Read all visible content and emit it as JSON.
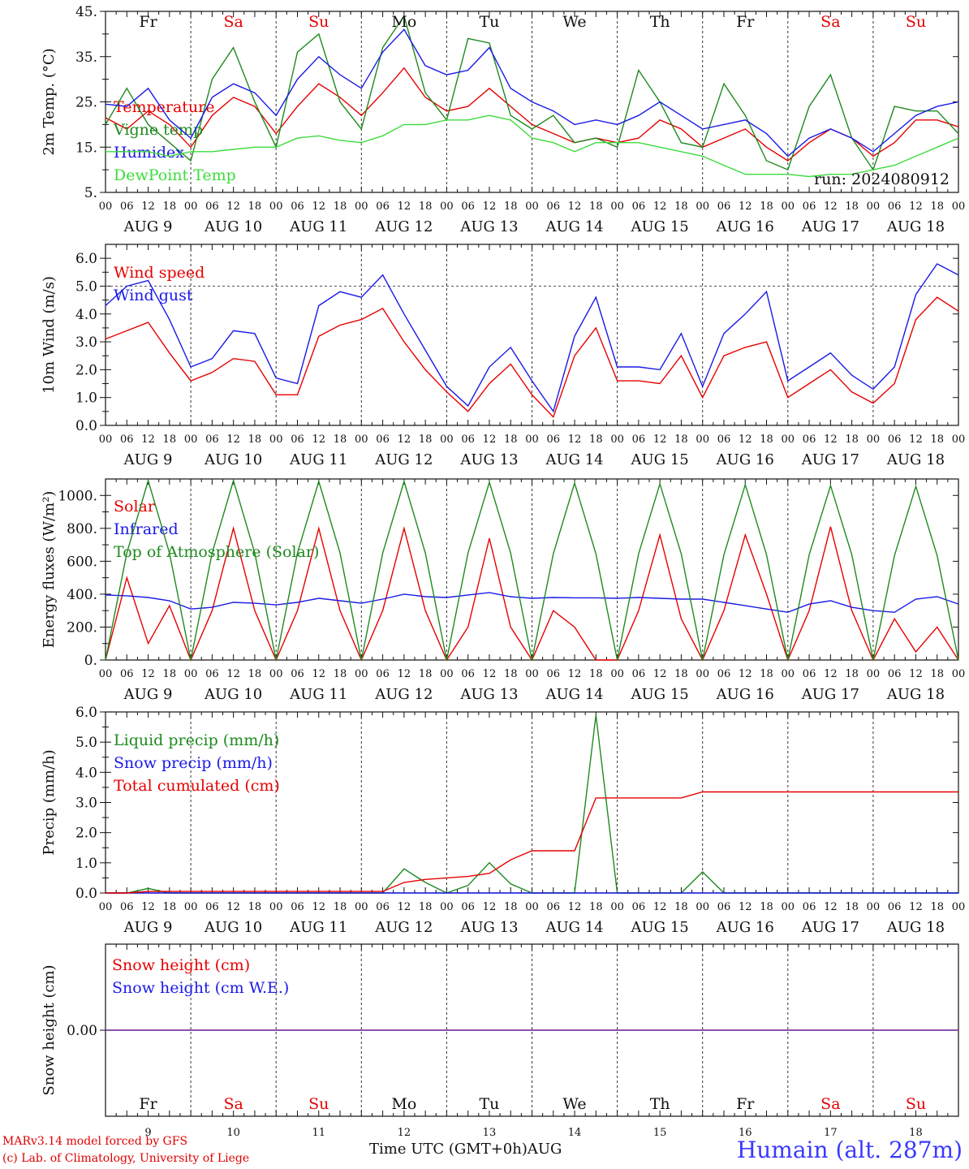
{
  "colors": {
    "red": "#e60000",
    "green": "#1f8a1f",
    "blue": "#1a1ae6",
    "lightgreen": "#3ddc3d",
    "purple": "#7a3aa0"
  },
  "days": [
    {
      "abbr": "Fr",
      "weekend": false,
      "date": "AUG  9",
      "num": "9"
    },
    {
      "abbr": "Sa",
      "weekend": true,
      "date": "AUG 10",
      "num": "10"
    },
    {
      "abbr": "Su",
      "weekend": true,
      "date": "AUG 11",
      "num": "11"
    },
    {
      "abbr": "Mo",
      "weekend": false,
      "date": "AUG 12",
      "num": "12"
    },
    {
      "abbr": "Tu",
      "weekend": false,
      "date": "AUG 13",
      "num": "13"
    },
    {
      "abbr": "We",
      "weekend": false,
      "date": "AUG 14",
      "num": "14"
    },
    {
      "abbr": "Th",
      "weekend": false,
      "date": "AUG 15",
      "num": "15"
    },
    {
      "abbr": "Fr",
      "weekend": false,
      "date": "AUG 16",
      "num": "16"
    },
    {
      "abbr": "Sa",
      "weekend": true,
      "date": "AUG 17",
      "num": "17"
    },
    {
      "abbr": "Su",
      "weekend": true,
      "date": "AUG 18",
      "num": "18"
    }
  ],
  "hour_ticks": [
    "00",
    "06",
    "12",
    "18"
  ],
  "final_tick": "00",
  "footer": {
    "model": "MARv3.14 model forced by GFS",
    "lab": "(c) Lab. of Climatology, University of Liege",
    "time_label": "Time UTC (GMT+0h)",
    "month": "AUG",
    "station": "Humain (alt. 287m)"
  },
  "chart_data": [
    {
      "type": "line",
      "ylabel": "2m Temp. (°C)",
      "ylim": [
        5,
        45
      ],
      "yticks": [
        5,
        15,
        25,
        35,
        45
      ],
      "ytick_labels": [
        "5.",
        "15.",
        "25.",
        "35.",
        "45."
      ],
      "annotation": "run: 2024080912",
      "x_hours": [
        0,
        6,
        12,
        18,
        24,
        30,
        36,
        42,
        48,
        54,
        60,
        66,
        72,
        78,
        84,
        90,
        96,
        102,
        108,
        114,
        120,
        126,
        132,
        138,
        144,
        150,
        156,
        162,
        168,
        174,
        180,
        186,
        192,
        198,
        204,
        210,
        216,
        222,
        228,
        234,
        240
      ],
      "series": [
        {
          "name": "Temperature",
          "color": "red",
          "values": [
            21.5,
            19,
            23,
            20,
            15,
            22,
            26,
            24,
            18,
            24,
            29,
            26,
            22,
            27,
            32.5,
            26,
            23,
            24,
            28,
            24,
            20,
            18,
            16,
            17,
            16,
            17,
            21,
            19,
            15,
            17,
            19,
            15,
            12,
            16,
            19,
            17,
            13,
            16,
            21,
            21,
            19.5
          ]
        },
        {
          "name": "Vigne temp",
          "color": "green",
          "values": [
            20,
            28,
            20,
            16,
            12,
            30,
            37,
            25,
            15,
            36,
            40,
            25,
            19,
            37,
            44,
            27,
            21,
            39,
            38,
            22,
            19,
            22,
            16,
            17,
            15,
            32,
            25,
            16,
            15,
            29,
            22,
            12,
            10,
            24,
            31,
            17,
            10,
            24,
            23,
            23,
            18
          ]
        },
        {
          "name": "Humidex",
          "color": "blue",
          "values": [
            24.5,
            24,
            28,
            21,
            17,
            26,
            29,
            27,
            22,
            30,
            35,
            31,
            28,
            36,
            41,
            33,
            31,
            32,
            37,
            28,
            25,
            23,
            20,
            21,
            20,
            22,
            25,
            22,
            19,
            20,
            21,
            18,
            13,
            17,
            19,
            17,
            14,
            18,
            22,
            24,
            25
          ]
        },
        {
          "name": "DewPoint Temp",
          "color": "lightgreen",
          "values": [
            14,
            14,
            14,
            13,
            14,
            14,
            14.5,
            15,
            15,
            17,
            17.5,
            16.5,
            16,
            17.5,
            20,
            20,
            21,
            21,
            22,
            21,
            17,
            16,
            14,
            16,
            16,
            16,
            15,
            14,
            13,
            11,
            9,
            9,
            9,
            8.5,
            9,
            9,
            10,
            11,
            13,
            15,
            17
          ]
        }
      ]
    },
    {
      "type": "line",
      "ylabel": "10m Wind (m/s)",
      "ylim": [
        0,
        6.5
      ],
      "yticks": [
        0,
        1,
        2,
        3,
        4,
        5,
        6
      ],
      "ytick_labels": [
        "0.0",
        "1.0",
        "2.0",
        "3.0",
        "4.0",
        "5.0",
        "6.0"
      ],
      "ref_line": 5.0,
      "x_hours": [
        0,
        6,
        12,
        18,
        24,
        30,
        36,
        42,
        48,
        54,
        60,
        66,
        72,
        78,
        84,
        90,
        96,
        102,
        108,
        114,
        120,
        126,
        132,
        138,
        144,
        150,
        156,
        162,
        168,
        174,
        180,
        186,
        192,
        198,
        204,
        210,
        216,
        222,
        228,
        234,
        240
      ],
      "series": [
        {
          "name": "Wind speed",
          "color": "red",
          "values": [
            3.1,
            3.4,
            3.7,
            2.6,
            1.6,
            1.9,
            2.4,
            2.3,
            1.1,
            1.1,
            3.2,
            3.6,
            3.8,
            4.2,
            3.0,
            2.0,
            1.2,
            0.5,
            1.5,
            2.2,
            1.1,
            0.3,
            2.5,
            3.5,
            1.6,
            1.6,
            1.5,
            2.5,
            1.0,
            2.5,
            2.8,
            3.0,
            1.0,
            1.5,
            2.0,
            1.2,
            0.8,
            1.5,
            3.8,
            4.6,
            4.1
          ]
        },
        {
          "name": "Wind gust",
          "color": "blue",
          "values": [
            4.3,
            5.0,
            5.2,
            3.8,
            2.1,
            2.4,
            3.4,
            3.3,
            1.7,
            1.5,
            4.3,
            4.8,
            4.6,
            5.4,
            4.0,
            2.7,
            1.4,
            0.7,
            2.1,
            2.8,
            1.6,
            0.5,
            3.2,
            4.6,
            2.1,
            2.1,
            2.0,
            3.3,
            1.4,
            3.3,
            4.0,
            4.8,
            1.6,
            2.1,
            2.6,
            1.8,
            1.3,
            2.1,
            4.7,
            5.8,
            5.4
          ]
        }
      ]
    },
    {
      "type": "line",
      "ylabel": "Energy fluxes (W/m²)",
      "ylim": [
        0,
        1100
      ],
      "yticks": [
        0,
        200,
        400,
        600,
        800,
        1000
      ],
      "ytick_labels": [
        "0.",
        "200.",
        "400.",
        "600.",
        "800.",
        "1000."
      ],
      "x_hours": [
        0,
        6,
        12,
        18,
        24,
        30,
        36,
        42,
        48,
        54,
        60,
        66,
        72,
        78,
        84,
        90,
        96,
        102,
        108,
        114,
        120,
        126,
        132,
        138,
        144,
        150,
        156,
        162,
        168,
        174,
        180,
        186,
        192,
        198,
        204,
        210,
        216,
        222,
        228,
        234,
        240
      ],
      "series": [
        {
          "name": "Solar",
          "color": "red",
          "values": [
            0,
            500,
            100,
            330,
            0,
            300,
            800,
            300,
            0,
            300,
            800,
            300,
            0,
            300,
            800,
            300,
            0,
            200,
            740,
            200,
            0,
            300,
            200,
            0,
            0,
            300,
            760,
            250,
            0,
            300,
            760,
            400,
            0,
            300,
            810,
            300,
            0,
            250,
            50,
            200,
            0
          ]
        },
        {
          "name": "Infrared",
          "color": "blue",
          "values": [
            395,
            390,
            380,
            360,
            310,
            320,
            350,
            345,
            335,
            350,
            375,
            360,
            345,
            370,
            400,
            385,
            380,
            395,
            410,
            385,
            375,
            380,
            378,
            378,
            375,
            380,
            375,
            370,
            370,
            350,
            330,
            310,
            290,
            340,
            360,
            320,
            300,
            290,
            370,
            385,
            340
          ]
        },
        {
          "name": "Top of Atmosphere (Solar)",
          "color": "green",
          "values": [
            0,
            650,
            1090,
            650,
            0,
            650,
            1090,
            650,
            0,
            650,
            1085,
            650,
            0,
            650,
            1085,
            650,
            0,
            650,
            1080,
            650,
            0,
            645,
            1075,
            645,
            0,
            645,
            1070,
            645,
            0,
            640,
            1065,
            640,
            0,
            640,
            1060,
            640,
            0,
            635,
            1055,
            635,
            0
          ]
        }
      ]
    },
    {
      "type": "line",
      "ylabel": "Precip (mm/h)",
      "ylim": [
        0,
        6
      ],
      "yticks": [
        0,
        1,
        2,
        3,
        4,
        5,
        6
      ],
      "ytick_labels": [
        "0.0",
        "1.0",
        "2.0",
        "3.0",
        "4.0",
        "5.0",
        "6.0"
      ],
      "x_hours": [
        0,
        6,
        12,
        18,
        24,
        30,
        36,
        42,
        48,
        54,
        60,
        66,
        72,
        78,
        84,
        90,
        96,
        102,
        108,
        114,
        120,
        126,
        132,
        138,
        144,
        150,
        156,
        162,
        168,
        174,
        180,
        186,
        192,
        198,
        204,
        210,
        216,
        222,
        228,
        234,
        240
      ],
      "series": [
        {
          "name": "Liquid precip (mm/h)",
          "color": "green",
          "values": [
            0,
            0,
            0.15,
            0,
            0,
            0,
            0,
            0,
            0,
            0,
            0,
            0,
            0,
            0,
            0.8,
            0.35,
            0,
            0.25,
            1.0,
            0.3,
            0,
            0,
            0,
            5.9,
            0,
            0,
            0,
            0,
            0.7,
            0,
            0,
            0,
            0,
            0,
            0,
            0,
            0,
            0,
            0,
            0,
            0
          ]
        },
        {
          "name": "Snow precip (mm/h)",
          "color": "blue",
          "values": [
            0,
            0,
            0,
            0,
            0,
            0,
            0,
            0,
            0,
            0,
            0,
            0,
            0,
            0,
            0,
            0,
            0,
            0,
            0,
            0,
            0,
            0,
            0,
            0,
            0,
            0,
            0,
            0,
            0,
            0,
            0,
            0,
            0,
            0,
            0,
            0,
            0,
            0,
            0,
            0,
            0
          ]
        },
        {
          "name": "Total cumulated (cm)",
          "color": "red",
          "values": [
            0,
            0,
            0.05,
            0.05,
            0.05,
            0.05,
            0.05,
            0.05,
            0.05,
            0.05,
            0.05,
            0.05,
            0.05,
            0.05,
            0.35,
            0.45,
            0.5,
            0.55,
            0.65,
            1.1,
            1.4,
            1.4,
            1.4,
            3.15,
            3.15,
            3.15,
            3.15,
            3.15,
            3.35,
            3.35,
            3.35,
            3.35,
            3.35,
            3.35,
            3.35,
            3.35,
            3.35,
            3.35,
            3.35,
            3.35,
            3.35
          ]
        }
      ]
    },
    {
      "type": "line",
      "ylabel": "Snow height (cm)",
      "ylim": [
        -1,
        1
      ],
      "yticks": [
        0
      ],
      "ytick_labels": [
        "0.00"
      ],
      "x_hours": [
        0,
        240
      ],
      "series": [
        {
          "name": "Snow height (cm)",
          "color": "red",
          "values": [
            0,
            0
          ]
        },
        {
          "name": "Snow height (cm W.E.)",
          "color": "blue",
          "values": [
            0,
            0
          ]
        }
      ]
    }
  ]
}
